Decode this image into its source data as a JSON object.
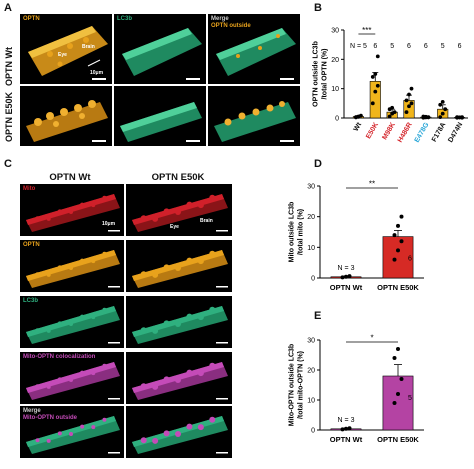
{
  "colors": {
    "optn": "#e8a21c",
    "lc3b": "#2fb07f",
    "mito": "#d0202a",
    "coloc": "#c44bb8",
    "wt_label": "#111111",
    "e50k_label": "#d4262c",
    "e478g_label": "#2aa7d8",
    "bar_orange": "#f0b51c",
    "bar_red": "#d62a25",
    "bar_magenta": "#b443a3"
  },
  "panel_a": {
    "letter": "A",
    "row_labels": [
      "OPTN Wt",
      "OPTN E50K"
    ],
    "col_labels": [
      "OPTN",
      "LC3b",
      "Merge"
    ],
    "merge_sub": "OPTN outside",
    "scale": "10μm",
    "axis_eye": "Eye",
    "axis_brain": "Brain",
    "axis_D": "D",
    "axis_V": "V"
  },
  "panel_c": {
    "letter": "C",
    "col_labels": [
      "OPTN Wt",
      "OPTN E50K"
    ],
    "row_labels": [
      "Mito",
      "OPTN",
      "LC3b",
      "Mito-OPTN colocalization",
      "Merge"
    ],
    "merge_sub": "Mito-OPTN outside",
    "scale": "10μm",
    "axis_eye": "Eye",
    "axis_brain": "Brain",
    "axis_C": "C",
    "axis_D": "D",
    "axis_V": "V",
    "axis_R": "R"
  },
  "panel_b": {
    "letter": "B",
    "sig": "***"
  },
  "panel_d": {
    "letter": "D",
    "sig": "**"
  },
  "panel_e": {
    "letter": "E",
    "sig": "*"
  },
  "chart_data": [
    {
      "id": "B",
      "type": "bar",
      "categories": [
        "Wt",
        "E50K",
        "M98K",
        "H486R",
        "E478G",
        "F178A",
        "D474N"
      ],
      "category_colors": [
        "#111111",
        "#d4262c",
        "#d4262c",
        "#d4262c",
        "#2aa7d8",
        "#111111",
        "#111111"
      ],
      "values": [
        0.5,
        12.5,
        2,
        6,
        0.3,
        3,
        0.2
      ],
      "errors": [
        0.3,
        3,
        1,
        1.8,
        0.2,
        1.5,
        0.2
      ],
      "n_labels": [
        "N = 5",
        "6",
        "5",
        "6",
        "6",
        "5",
        "6"
      ],
      "points": [
        [
          0.2,
          0.5,
          0.8,
          0.3,
          0.4
        ],
        [
          5,
          9,
          11,
          14,
          15,
          21
        ],
        [
          0.5,
          1.5,
          2,
          3,
          3.5
        ],
        [
          2,
          4,
          5,
          6,
          8,
          10
        ],
        [
          0.1,
          0.2,
          0.3,
          0.5,
          0.4,
          0.2
        ],
        [
          0.3,
          1.5,
          3,
          4.5,
          5.5
        ],
        [
          0.1,
          0.2,
          0.1,
          0.3,
          0.2,
          0.3
        ]
      ],
      "ylabel_lines": [
        "OPTN outside LC3b",
        "/total OPTN (%)"
      ],
      "ylim": [
        0,
        30
      ],
      "yticks": [
        0,
        10,
        20,
        30
      ],
      "sig": {
        "from": 0,
        "to": 1,
        "label": "***"
      }
    },
    {
      "id": "D",
      "type": "bar",
      "categories": [
        "OPTN Wt",
        "OPTN E50K"
      ],
      "values": [
        0.4,
        13.5
      ],
      "errors": [
        0.2,
        2
      ],
      "n_label": "N = 3",
      "n_label_right": "6",
      "points": [
        [
          0.2,
          0.4,
          0.6
        ],
        [
          6,
          9,
          12,
          14,
          17,
          20
        ]
      ],
      "ylabel_lines": [
        "Mito outside LC3b",
        "/total mito (%)"
      ],
      "ylim": [
        0,
        30
      ],
      "yticks": [
        0,
        10,
        20,
        30
      ],
      "sig": "**"
    },
    {
      "id": "E",
      "type": "bar",
      "categories": [
        "OPTN Wt",
        "OPTN E50K"
      ],
      "values": [
        0.4,
        18
      ],
      "errors": [
        0.2,
        3.8
      ],
      "n_label": "N = 3",
      "n_label_right": "5",
      "points": [
        [
          0.2,
          0.4,
          0.6
        ],
        [
          9,
          12,
          17,
          24,
          27
        ]
      ],
      "ylabel_lines": [
        "Mito-OPTN outside LC3b",
        "/total mito-OPTN (%)"
      ],
      "ylim": [
        0,
        30
      ],
      "yticks": [
        0,
        10,
        20,
        30
      ],
      "sig": "*"
    }
  ]
}
